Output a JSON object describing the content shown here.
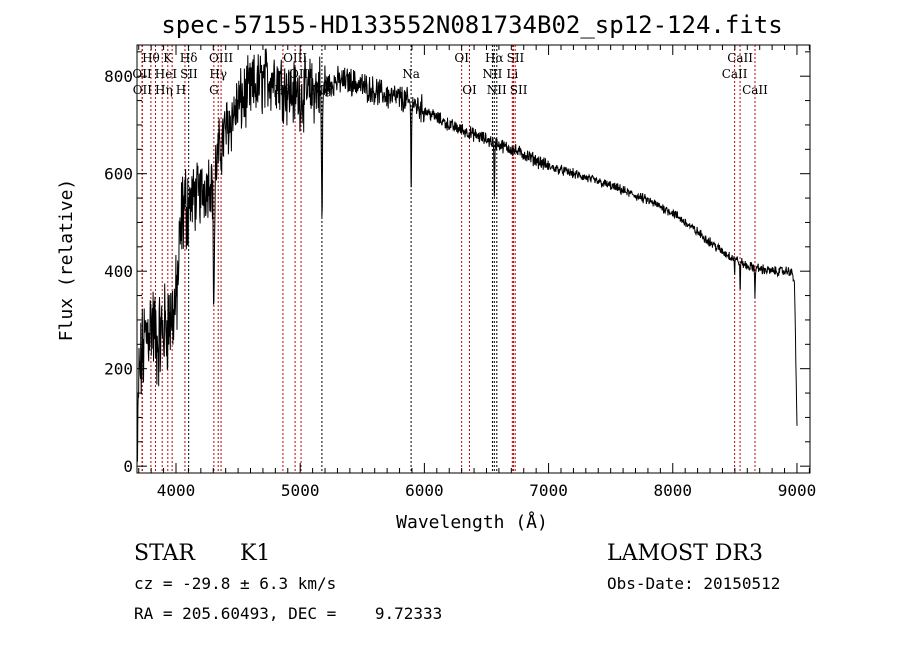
{
  "chart_data": {
    "type": "line",
    "title": "spec-57155-HD133552N081734B02_sp12-124.fits",
    "xlabel": "Wavelength (Å)",
    "ylabel": "Flux (relative)",
    "xlim": [
      3686,
      9105
    ],
    "ylim": [
      -14,
      864
    ],
    "xticks": [
      4000,
      5000,
      6000,
      7000,
      8000,
      9000
    ],
    "yticks": [
      0,
      200,
      400,
      600,
      800
    ],
    "grid": false,
    "spectrum_continuum": [
      [
        3690,
        0
      ],
      [
        3700,
        180
      ],
      [
        3750,
        260
      ],
      [
        3800,
        300
      ],
      [
        3850,
        250
      ],
      [
        3900,
        280
      ],
      [
        3950,
        300
      ],
      [
        4000,
        330
      ],
      [
        4050,
        520
      ],
      [
        4100,
        540
      ],
      [
        4200,
        560
      ],
      [
        4300,
        600
      ],
      [
        4400,
        690
      ],
      [
        4500,
        740
      ],
      [
        4600,
        770
      ],
      [
        4700,
        790
      ],
      [
        4800,
        800
      ],
      [
        4900,
        770
      ],
      [
        5000,
        760
      ],
      [
        5100,
        770
      ],
      [
        5200,
        780
      ],
      [
        5300,
        790
      ],
      [
        5400,
        790
      ],
      [
        5500,
        780
      ],
      [
        5600,
        770
      ],
      [
        5700,
        760
      ],
      [
        5800,
        755
      ],
      [
        5900,
        745
      ],
      [
        6000,
        730
      ],
      [
        6100,
        715
      ],
      [
        6200,
        700
      ],
      [
        6300,
        690
      ],
      [
        6400,
        680
      ],
      [
        6500,
        670
      ],
      [
        6600,
        660
      ],
      [
        6700,
        650
      ],
      [
        6800,
        640
      ],
      [
        7000,
        615
      ],
      [
        7200,
        600
      ],
      [
        7500,
        575
      ],
      [
        7800,
        545
      ],
      [
        8000,
        520
      ],
      [
        8200,
        480
      ],
      [
        8400,
        440
      ],
      [
        8600,
        410
      ],
      [
        8800,
        400
      ],
      [
        8950,
        400
      ],
      [
        8980,
        380
      ],
      [
        9000,
        80
      ]
    ],
    "absorption_features": [
      {
        "wavelength": 4305,
        "depth": 260,
        "width": 8
      },
      {
        "wavelength": 5175,
        "depth": 280,
        "width": 6
      },
      {
        "wavelength": 5893,
        "depth": 180,
        "width": 4
      },
      {
        "wavelength": 6563,
        "depth": 110,
        "width": 4
      },
      {
        "wavelength": 8498,
        "depth": 30,
        "width": 3
      },
      {
        "wavelength": 8542,
        "depth": 70,
        "width": 3
      },
      {
        "wavelength": 8662,
        "depth": 70,
        "width": 3
      }
    ],
    "lines": [
      {
        "name": "OII",
        "wavelength": 3727,
        "row": 2,
        "color": "#c00000"
      },
      {
        "name": "OII",
        "wavelength": 3729,
        "row": 3,
        "color": "#c00000"
      },
      {
        "name": "Hθ",
        "wavelength": 3798,
        "row": 1,
        "color": "#c00000"
      },
      {
        "name": "Hη",
        "wavelength": 3835,
        "row": 3,
        "color": "#c00000"
      },
      {
        "name": "HeI",
        "wavelength": 3889,
        "row": 2,
        "color": "#c00000"
      },
      {
        "name": "K",
        "wavelength": 3934,
        "row": 1,
        "color": "#c00000"
      },
      {
        "name": "H",
        "wavelength": 3969,
        "row": 3,
        "color": "#c00000"
      },
      {
        "name": "SII",
        "wavelength": 4072,
        "row": 2,
        "color": "#c00000"
      },
      {
        "name": "Hδ",
        "wavelength": 4102,
        "row": 1,
        "color": "#000000"
      },
      {
        "name": "G",
        "wavelength": 4305,
        "row": 3,
        "color": "#c00000"
      },
      {
        "name": "Hγ",
        "wavelength": 4340,
        "row": 2,
        "color": "#c00000"
      },
      {
        "name": "OIII",
        "wavelength": 4363,
        "row": 1,
        "color": "#c00000"
      },
      {
        "name": "Hβ",
        "wavelength": 4861,
        "row": 3,
        "color": "#c00000"
      },
      {
        "name": "OIII",
        "wavelength": 4959,
        "row": 1,
        "color": "#c00000"
      },
      {
        "name": "OIII",
        "wavelength": 5007,
        "row": 2,
        "color": "#c00000"
      },
      {
        "name": "Mg",
        "wavelength": 5175,
        "row": 3,
        "color": "#000000"
      },
      {
        "name": "Na",
        "wavelength": 5893,
        "row": 2,
        "color": "#000000"
      },
      {
        "name": "OI",
        "wavelength": 6300,
        "row": 1,
        "color": "#c00000"
      },
      {
        "name": "OI",
        "wavelength": 6363,
        "row": 3,
        "color": "#c00000"
      },
      {
        "name": "NII",
        "wavelength": 6548,
        "row": 2,
        "color": "#000000"
      },
      {
        "name": "Hα",
        "wavelength": 6563,
        "row": 1,
        "color": "#000000"
      },
      {
        "name": "NII",
        "wavelength": 6583,
        "row": 3,
        "color": "#000000"
      },
      {
        "name": "Li",
        "wavelength": 6708,
        "row": 2,
        "color": "#c00000"
      },
      {
        "name": "SII",
        "wavelength": 6717,
        "row": 1,
        "color": "#c00000"
      },
      {
        "name": "SII",
        "wavelength": 6731,
        "row": 3,
        "color": "#c00000"
      },
      {
        "name": "CaII",
        "wavelength": 8498,
        "row": 2,
        "color": "#c00000"
      },
      {
        "name": "CaII",
        "wavelength": 8542,
        "row": 1,
        "color": "#c00000"
      },
      {
        "name": "CaII",
        "wavelength": 8662,
        "row": 3,
        "color": "#c00000"
      }
    ]
  },
  "info": {
    "object_class": "STAR",
    "subclass": "K1",
    "survey": "LAMOST DR3",
    "cz": "cz = -29.8 ± 6.3 km/s",
    "obs_date": "Obs-Date: 20150512",
    "coords": "RA = 205.60493, DEC =    9.72333"
  }
}
